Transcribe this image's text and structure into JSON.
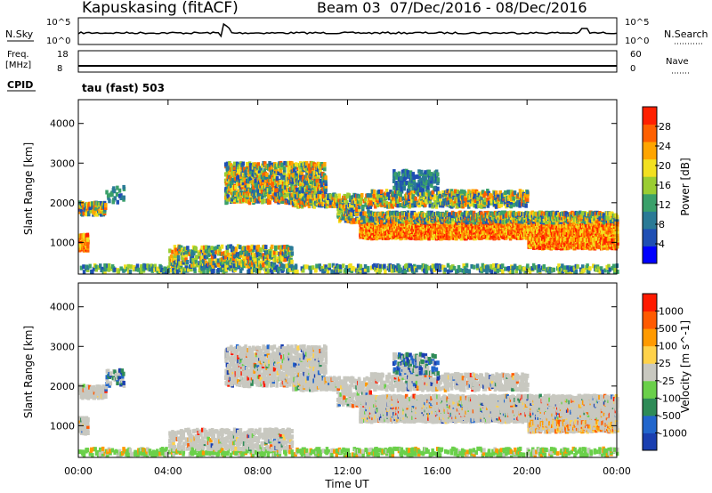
{
  "header": {
    "station": "Kapuskasing (fitACF)",
    "beam": "Beam 03",
    "dates": "07/Dec/2016 - 08/Dec/2016"
  },
  "noise_panel": {
    "left_label": "N.Sky",
    "left_ticks": [
      "10^5",
      "10^0"
    ],
    "right_label": "N.Search",
    "right_ticks": [
      "10^5",
      "10^0"
    ]
  },
  "freq_panel": {
    "left_label_1": "Freq.",
    "left_label_2": "[MHz]",
    "left_ticks": [
      "18",
      "8"
    ],
    "right_label": "Nave",
    "right_ticks": [
      "60",
      "0"
    ],
    "cpid_label": "CPID",
    "cpid_value": "tau (fast) 503"
  },
  "chart_data": [
    {
      "type": "heatmap",
      "title": "",
      "ylabel": "Slant Range [km]",
      "xlabel": "",
      "y_ticks": [
        "4000",
        "3000",
        "2000",
        "1000"
      ],
      "ylim": [
        200,
        4600
      ],
      "xlim_hours": [
        0,
        24
      ],
      "colorbar": {
        "label": "Power [dB]",
        "ticks": [
          "28",
          "24",
          "20",
          "16",
          "12",
          "8",
          "4"
        ],
        "colors": [
          "#0000ff",
          "#1f4fb4",
          "#2a7a96",
          "#3aa06a",
          "#9acd32",
          "#f2e020",
          "#ffa500",
          "#ff6000",
          "#ff2000"
        ],
        "range": [
          0,
          30
        ]
      },
      "grid": false
    },
    {
      "type": "heatmap",
      "title": "",
      "ylabel": "Slant Range [km]",
      "xlabel": "Time UT",
      "y_ticks": [
        "4000",
        "3000",
        "2000",
        "1000"
      ],
      "ylim": [
        200,
        4600
      ],
      "xlim_hours": [
        0,
        24
      ],
      "x_ticks": [
        "00:00",
        "04:00",
        "08:00",
        "12:00",
        "16:00",
        "20:00",
        "00:00"
      ],
      "colorbar": {
        "label": "Velocity [m s^-1]",
        "ticks": [
          "1000",
          "500",
          "100",
          "25",
          "-25",
          "-100",
          "-500",
          "-1000"
        ],
        "colors": [
          "#1a3fb0",
          "#2266cc",
          "#2e8b57",
          "#6ad04a",
          "#c8c8c0",
          "#ffd24a",
          "#ff9a00",
          "#ff5a00",
          "#ff1a00"
        ],
        "range": [
          -1200,
          1200
        ]
      },
      "grid": false
    }
  ]
}
